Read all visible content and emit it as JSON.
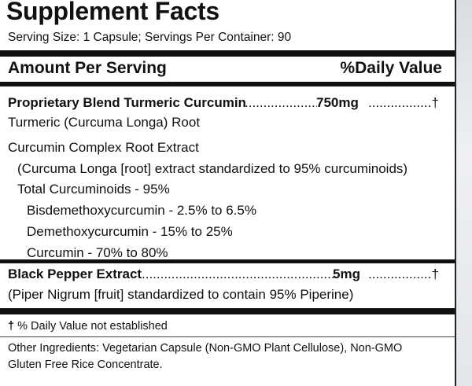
{
  "title": "Supplement Facts",
  "serving": "Serving Size: 1 Capsule;  Servings Per Container: 90",
  "header": {
    "amount": "Amount Per Serving",
    "dv": "%Daily Value"
  },
  "blend": {
    "name": "Proprietary Blend Turmeric Curcumin",
    "leader": "....................",
    "amount": "750mg",
    "leader2": "..................",
    "dv": "†",
    "lines": [
      "Turmeric (Curcuma Longa) Root",
      "Curcumin Complex Root Extract",
      "(Curcuma Longa [root] extract standardized to 95% curcuminoids)",
      "Total Curcuminoids - 95%",
      "Bisdemethoxycurcumin - 2.5% to 6.5%",
      "Demethoxycurcumin - 15% to 25%",
      "Curcumin - 70% to 80%"
    ]
  },
  "pepper": {
    "name": "Black Pepper Extract",
    "leader": ".....................................................",
    "amount": "5mg",
    "leader2": "..................",
    "dv": "†",
    "note": "(Piper Nigrum [fruit] standardized to contain 95% Piperine)"
  },
  "footnote": {
    "symbol": "†",
    "text": " % Daily Value not established"
  },
  "other_ingredients": [
    "Other Ingredients: Vegetarian Capsule (Non-GMO Plant Cellulose), Non-GMO",
    "Gluten Free Rice Concentrate."
  ]
}
